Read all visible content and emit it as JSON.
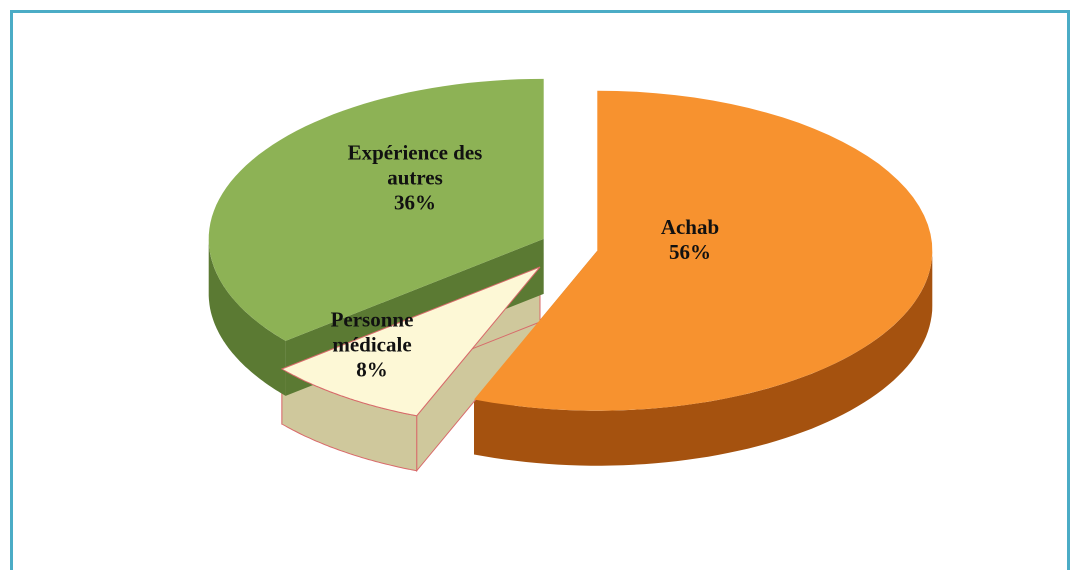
{
  "chart_data": {
    "type": "pie",
    "categories": [
      "Achab",
      "Personne médicale",
      "Expérience des autres"
    ],
    "values": [
      56,
      8,
      36
    ],
    "value_labels": [
      "56%",
      "8%",
      "36%"
    ],
    "colors": [
      "#f7922f",
      "#fdf8d6",
      "#8db255"
    ]
  }
}
